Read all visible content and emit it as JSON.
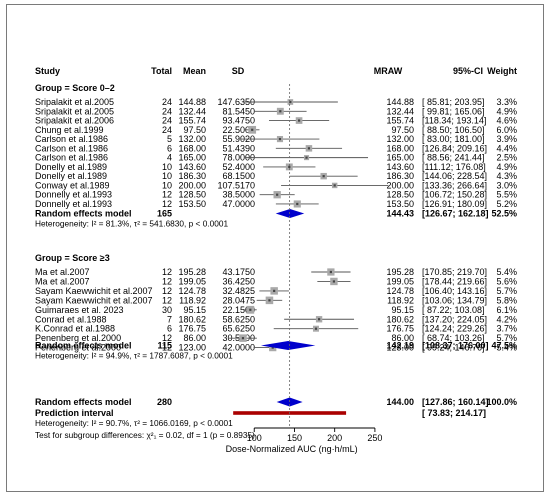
{
  "chart_data": {
    "type": "forest",
    "columns": {
      "study": "Study",
      "total": "Total",
      "mean": "Mean",
      "sd": "SD",
      "mraw": "MRAW",
      "ci": "95%-CI",
      "weight": "Weight"
    },
    "groups": [
      {
        "title": "Group = Score 0–2",
        "studies": [
          {
            "study": "Sripalakit et al.2005",
            "total": "24",
            "mean": "144.88",
            "sd": "147.6350",
            "mraw": 144.88,
            "lo": 85.81,
            "hi": 203.95,
            "ci_text": "[ 85.81; 203.95]",
            "weight": "3.3%",
            "w": 3.3
          },
          {
            "study": "Sripalakit et al.2005",
            "total": "24",
            "mean": "132.44",
            "sd": "81.5450",
            "mraw": 132.44,
            "lo": 99.81,
            "hi": 165.06,
            "ci_text": "[ 99.81; 165.06]",
            "weight": "4.9%",
            "w": 4.9
          },
          {
            "study": "Sripalakit et al.2006",
            "total": "24",
            "mean": "155.74",
            "sd": "93.4750",
            "mraw": 155.74,
            "lo": 118.34,
            "hi": 193.14,
            "ci_text": "[118.34; 193.14]",
            "weight": "4.6%",
            "w": 4.6
          },
          {
            "study": "Chung et al.1999",
            "total": "24",
            "mean": "97.50",
            "sd": "22.5000",
            "mraw": 97.5,
            "lo": 88.5,
            "hi": 106.5,
            "ci_text": "[ 88.50; 106.50]",
            "weight": "6.0%",
            "w": 6.0
          },
          {
            "study": "Carlson et al.1986",
            "total": "5",
            "mean": "132.00",
            "sd": "55.9020",
            "mraw": 132.0,
            "lo": 83.0,
            "hi": 181.0,
            "ci_text": "[ 83.00; 181.00]",
            "weight": "3.9%",
            "w": 3.9
          },
          {
            "study": "Carlson et al.1986",
            "total": "6",
            "mean": "168.00",
            "sd": "51.4390",
            "mraw": 168.0,
            "lo": 126.84,
            "hi": 209.16,
            "ci_text": "[126.84; 209.16]",
            "weight": "4.4%",
            "w": 4.4
          },
          {
            "study": "Carlson et al.1986",
            "total": "4",
            "mean": "165.00",
            "sd": "78.0000",
            "mraw": 165.0,
            "lo": 88.56,
            "hi": 241.44,
            "ci_text": "[ 88.56; 241.44]",
            "weight": "2.5%",
            "w": 2.5
          },
          {
            "study": "Donelly et al.1989",
            "total": "10",
            "mean": "143.60",
            "sd": "52.4000",
            "mraw": 143.6,
            "lo": 111.12,
            "hi": 176.08,
            "ci_text": "[111.12; 176.08]",
            "weight": "4.9%",
            "w": 4.9
          },
          {
            "study": "Donelly et al.1989",
            "total": "10",
            "mean": "186.30",
            "sd": "68.1500",
            "mraw": 186.3,
            "lo": 144.06,
            "hi": 228.54,
            "ci_text": "[144.06; 228.54]",
            "weight": "4.3%",
            "w": 4.3
          },
          {
            "study": "Conway et al.1989",
            "total": "10",
            "mean": "200.00",
            "sd": "107.5170",
            "mraw": 200.0,
            "lo": 133.36,
            "hi": 266.64,
            "ci_text": "[133.36; 266.64]",
            "weight": "3.0%",
            "w": 3.0
          },
          {
            "study": "Donnelly et al.1993",
            "total": "12",
            "mean": "128.50",
            "sd": "38.5000",
            "mraw": 128.5,
            "lo": 106.72,
            "hi": 150.28,
            "ci_text": "[106.72; 150.28]",
            "weight": "5.5%",
            "w": 5.5
          },
          {
            "study": "Donnelly et al.1993",
            "total": "12",
            "mean": "153.50",
            "sd": "47.0000",
            "mraw": 153.5,
            "lo": 126.91,
            "hi": 180.09,
            "ci_text": "[126.91; 180.09]",
            "weight": "5.2%",
            "w": 5.2
          }
        ],
        "pooled": {
          "label": "Random effects model",
          "total": "165",
          "mraw": 144.43,
          "lo": 126.67,
          "hi": 162.18,
          "mraw_text": "144.43",
          "ci_text": "[126.67; 162.18]",
          "weight": "52.5%"
        },
        "heterogeneity": "Heterogeneity: I² = 81.3%, τ² = 541.6830, p < 0.0001"
      },
      {
        "title": "Group = Score ≥3",
        "studies": [
          {
            "study": "Ma et al.2007",
            "total": "12",
            "mean": "195.28",
            "sd": "43.1750",
            "mraw": 195.28,
            "lo": 170.85,
            "hi": 219.7,
            "ci_text": "[170.85; 219.70]",
            "weight": "5.4%",
            "w": 5.4
          },
          {
            "study": "Ma et al.2007",
            "total": "12",
            "mean": "199.05",
            "sd": "36.4250",
            "mraw": 199.05,
            "lo": 178.44,
            "hi": 219.66,
            "ci_text": "[178.44; 219.66]",
            "weight": "5.6%",
            "w": 5.6
          },
          {
            "study": "Sayam Kaewwichit et al.2007",
            "total": "12",
            "mean": "124.78",
            "sd": "32.4825",
            "mraw": 124.78,
            "lo": 106.4,
            "hi": 143.16,
            "ci_text": "[106.40; 143.16]",
            "weight": "5.7%",
            "w": 5.7
          },
          {
            "study": "Sayam Kaewwichit et al.2007",
            "total": "12",
            "mean": "118.92",
            "sd": "28.0475",
            "mraw": 118.92,
            "lo": 103.06,
            "hi": 134.79,
            "ci_text": "[103.06; 134.79]",
            "weight": "5.8%",
            "w": 5.8
          },
          {
            "study": "Guimaraes et al. 2023",
            "total": "30",
            "mean": "95.15",
            "sd": "22.1500",
            "mraw": 95.15,
            "lo": 87.22,
            "hi": 103.08,
            "ci_text": "[ 87.22; 103.08]",
            "weight": "6.1%",
            "w": 6.1
          },
          {
            "study": "Conrad et al.1988",
            "total": "7",
            "mean": "180.62",
            "sd": "58.6250",
            "mraw": 180.62,
            "lo": 137.2,
            "hi": 224.05,
            "ci_text": "[137.20; 224.05]",
            "weight": "4.2%",
            "w": 4.2
          },
          {
            "study": "K.Conrad et al.1988",
            "total": "6",
            "mean": "176.75",
            "sd": "65.6250",
            "mraw": 176.75,
            "lo": 124.24,
            "hi": 229.26,
            "ci_text": "[124.24; 229.26]",
            "weight": "3.7%",
            "w": 3.7
          },
          {
            "study": "Penenberg et al.2000",
            "total": "12",
            "mean": "86.00",
            "sd": "30.5000",
            "mraw": 86.0,
            "lo": 68.74,
            "hi": 103.26,
            "ci_text": "[ 68.74; 103.26]",
            "weight": "5.7%",
            "w": 5.7
          },
          {
            "study": "Penenberg et al.2000",
            "total": "12",
            "mean": "123.00",
            "sd": "42.0000",
            "mraw": 123.0,
            "lo": 99.24,
            "hi": 146.76,
            "ci_text": "[ 99.24; 146.76]",
            "weight": "5.4%",
            "w": 5.4
          }
        ],
        "pooled": {
          "label": "Random effects model",
          "total": "115",
          "mraw": 142.19,
          "lo": 108.37,
          "hi": 176.0,
          "mraw_text": "142.19",
          "ci_text": "[108.37; 176.00]",
          "weight": "47.5%"
        },
        "heterogeneity": "Heterogeneity: I² = 94.9%, τ² = 1787.6087, p < 0.0001"
      }
    ],
    "overall": {
      "label": "Random effects model",
      "total": "280",
      "mraw": 144.0,
      "lo": 127.86,
      "hi": 160.14,
      "mraw_text": "144.00",
      "ci_text": "[127.86; 160.14]",
      "weight": "100.0%"
    },
    "prediction": {
      "label": "Prediction interval",
      "lo": 73.83,
      "hi": 214.17,
      "ci_text": "[ 73.83; 214.17]"
    },
    "heterogeneity_overall": "Heterogeneity: I² = 90.7%, τ² = 1066.0169, p < 0.0001",
    "subgroup_test": "Test for subgroup differences: χ²₁ = 0.02, df = 1 (p = 0.8935)",
    "x_axis": {
      "label": "Dose-Normalized AUC (ng·h/mL)",
      "ticks": [
        100,
        150,
        200,
        250
      ],
      "tick_labels": [
        "100",
        "150",
        "200",
        "250"
      ],
      "range": [
        50,
        270
      ],
      "reference": 144.0
    },
    "colors": {
      "diamond": "#0000cc",
      "prediction": "#aa0000",
      "box": "#a9a9a9",
      "frame": "#7a7a7a"
    }
  }
}
